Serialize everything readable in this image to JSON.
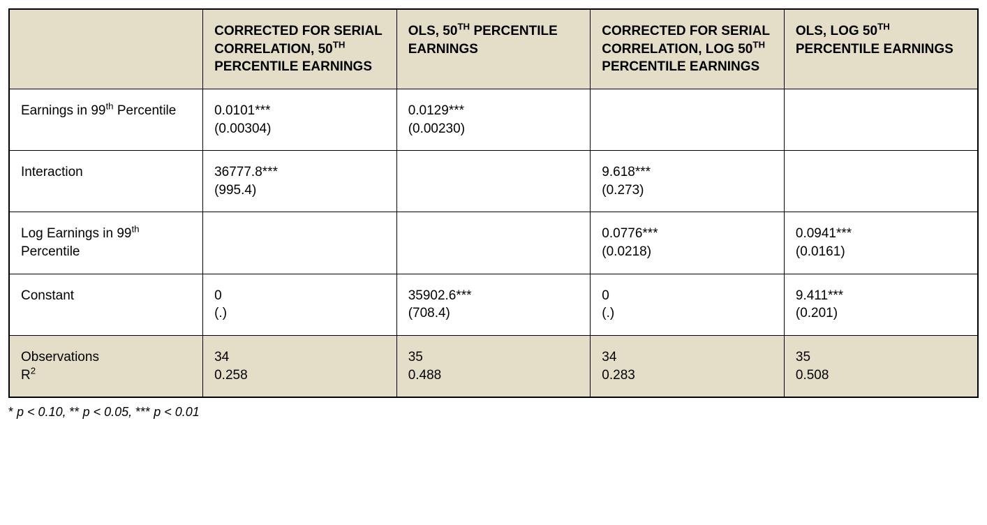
{
  "table": {
    "type": "table",
    "background_color": "#ffffff",
    "header_bg": "#e4dec8",
    "footer_bg": "#e4dec8",
    "border_color": "#000000",
    "font_size_pt": 14,
    "column_widths_pct": [
      20,
      20,
      20,
      20,
      20
    ],
    "columns": [
      {
        "label_html": ""
      },
      {
        "label_html": "CORRECTED FOR SERIAL CORRELATION, 50<sup>TH</sup> PERCENTILE EARNINGS"
      },
      {
        "label_html": "OLS, 50<sup>TH</sup> PERCENTILE EARNINGS"
      },
      {
        "label_html": "CORRECTED FOR SERIAL CORRELATION, LOG 50<sup>TH</sup> PERCENTILE EARNINGS"
      },
      {
        "label_html": "OLS, LOG 50<sup>TH</sup> PERCENTILE EARNINGS"
      }
    ],
    "rows": [
      {
        "label_html": "Earnings in 99<sup>th</sup> Percentile",
        "cells": [
          {
            "est": "0.0101",
            "stars": "***",
            "se": "(0.00304)"
          },
          {
            "est": "0.0129",
            "stars": "***",
            "se": "(0.00230)"
          },
          null,
          null
        ]
      },
      {
        "label_html": "Interaction",
        "cells": [
          {
            "est": "36777.8",
            "stars": "***",
            "se": "(995.4)"
          },
          null,
          {
            "est": "9.618",
            "stars": "***",
            "se": "(0.273)"
          },
          null
        ]
      },
      {
        "label_html": "Log Earnings in 99<sup>th</sup> Percentile",
        "cells": [
          null,
          null,
          {
            "est": "0.0776",
            "stars": "***",
            "se": "(0.0218)"
          },
          {
            "est": "0.0941",
            "stars": "***",
            "se": "(0.0161)"
          }
        ]
      },
      {
        "label_html": "Constant",
        "cells": [
          {
            "est": "0",
            "stars": "",
            "se": "(.)"
          },
          {
            "est": "35902.6",
            "stars": "***",
            "se": "(708.4)"
          },
          {
            "est": "0",
            "stars": "",
            "se": "(.)"
          },
          {
            "est": "9.411",
            "stars": "***",
            "se": "(0.201)"
          }
        ]
      }
    ],
    "footer": {
      "label_obs": "Observations",
      "label_r2_html": "R<sup>2</sup>",
      "values": [
        {
          "obs": "34",
          "r2": "0.258"
        },
        {
          "obs": "35",
          "r2": "0.488"
        },
        {
          "obs": "34",
          "r2": "0.283"
        },
        {
          "obs": "35",
          "r2": "0.508"
        }
      ]
    }
  },
  "footnote": {
    "s1": "*",
    "t1": "p < 0.10, ",
    "s2": "**",
    "t2": "p < 0.05, ",
    "s3": "***",
    "t3": "p < 0.01"
  }
}
